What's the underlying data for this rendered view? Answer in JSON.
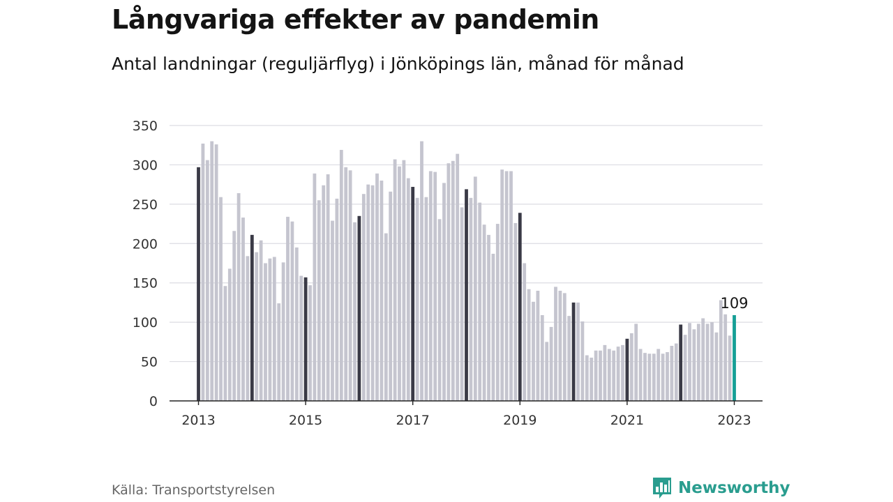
{
  "header": {
    "title": "Långvariga effekter av pandemin",
    "subtitle": "Antal landningar (reguljärflyg) i Jönköpings län, månad för månad"
  },
  "footer": {
    "source": "Källa: Transportstyrelsen",
    "brand": "Newsworthy"
  },
  "colors": {
    "bar": "#c5c5cf",
    "january_bar": "#3a3a46",
    "latest_bar": "#169f96",
    "grid": "#dcdce2",
    "axis": "#222222",
    "brand": "#2a9d8f"
  },
  "icons": {
    "logo": "bar-chart-speech-bubble-icon"
  },
  "chart_data": {
    "type": "bar",
    "start": "2013-01",
    "interval": "month",
    "ylim": [
      0,
      350
    ],
    "yticks": [
      0,
      50,
      100,
      150,
      200,
      250,
      300,
      350
    ],
    "xtick_labels": [
      "2013",
      "2015",
      "2017",
      "2019",
      "2021",
      "2023"
    ],
    "highlight_label": "109",
    "grid": true,
    "values": [
      297,
      327,
      306,
      330,
      326,
      259,
      146,
      168,
      216,
      264,
      233,
      184,
      211,
      189,
      204,
      175,
      181,
      183,
      124,
      176,
      234,
      228,
      195,
      159,
      157,
      147,
      289,
      255,
      274,
      288,
      229,
      257,
      319,
      297,
      293,
      227,
      235,
      263,
      275,
      274,
      289,
      280,
      213,
      266,
      307,
      298,
      306,
      283,
      272,
      258,
      330,
      259,
      292,
      291,
      231,
      277,
      302,
      305,
      314,
      246,
      269,
      258,
      285,
      252,
      224,
      211,
      187,
      225,
      294,
      292,
      292,
      226,
      239,
      175,
      142,
      126,
      140,
      109,
      75,
      94,
      145,
      140,
      137,
      108,
      125,
      125,
      101,
      58,
      55,
      64,
      64,
      71,
      66,
      64,
      69,
      71,
      79,
      86,
      98,
      66,
      61,
      60,
      60,
      66,
      60,
      62,
      70,
      73,
      97,
      84,
      99,
      91,
      98,
      105,
      98,
      100,
      87,
      128,
      110,
      83,
      109
    ]
  }
}
